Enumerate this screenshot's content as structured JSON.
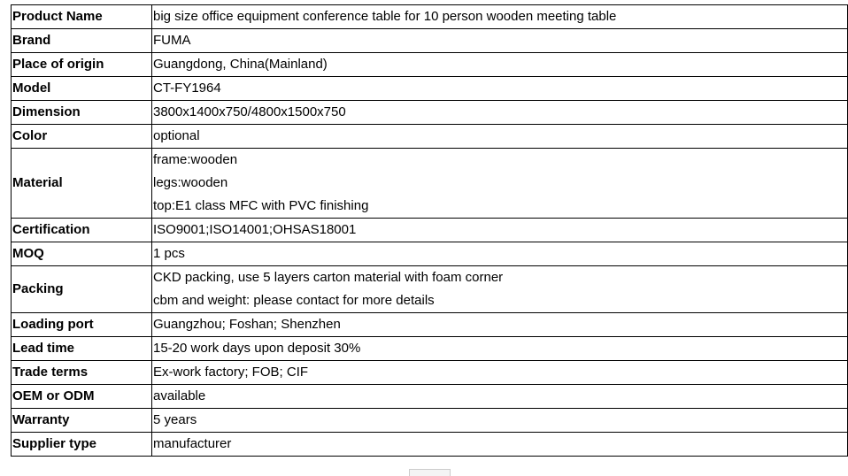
{
  "rows": [
    {
      "label": "Product Name",
      "value": [
        "big size office equipment conference table for 10 person wooden meeting table"
      ]
    },
    {
      "label": "Brand",
      "value": [
        "FUMA"
      ]
    },
    {
      "label": "Place of origin",
      "value": [
        "Guangdong, China(Mainland)"
      ]
    },
    {
      "label": "Model",
      "value": [
        "CT-FY1964"
      ]
    },
    {
      "label": "Dimension",
      "value": [
        "3800x1400x750/4800x1500x750"
      ]
    },
    {
      "label": "Color",
      "value": [
        "optional"
      ]
    },
    {
      "label": "Material",
      "value": [
        "frame:wooden",
        "legs:wooden",
        "top:E1 class MFC with PVC finishing"
      ]
    },
    {
      "label": "Certification",
      "value": [
        "ISO9001;ISO14001;OHSAS18001"
      ]
    },
    {
      "label": "MOQ",
      "value": [
        "1 pcs"
      ]
    },
    {
      "label": "Packing",
      "value": [
        "CKD packing, use 5 layers carton material with foam corner",
        "cbm and weight: please contact for more details"
      ]
    },
    {
      "label": "Loading port",
      "value": [
        "Guangzhou; Foshan; Shenzhen"
      ]
    },
    {
      "label": "Lead time",
      "value": [
        "15-20 work days upon deposit 30%"
      ]
    },
    {
      "label": "Trade terms",
      "value": [
        "Ex-work factory; FOB; CIF"
      ]
    },
    {
      "label": "OEM or ODM",
      "value": [
        "available"
      ]
    },
    {
      "label": "Warranty",
      "value": [
        "5 years"
      ]
    },
    {
      "label": "Supplier type",
      "value": [
        "manufacturer"
      ]
    }
  ]
}
